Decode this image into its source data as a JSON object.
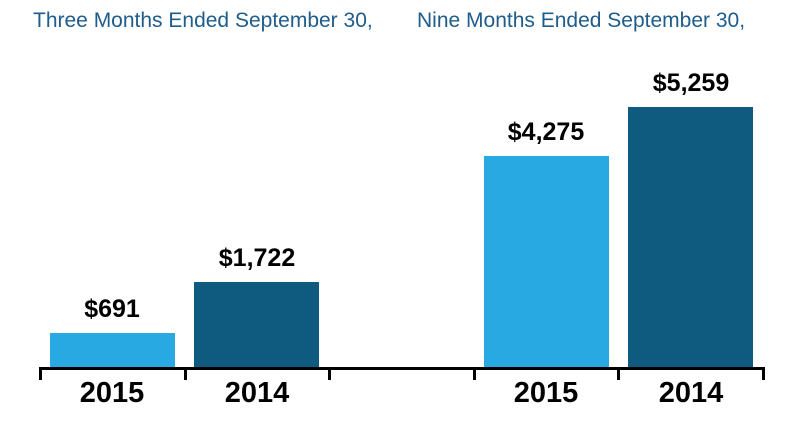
{
  "chart_data": {
    "type": "bar",
    "grid": false,
    "legend": "none",
    "background": "#FFFFFF",
    "ylim": [
      0,
      5259
    ],
    "xlabel": "",
    "ylabel": "",
    "groups": [
      {
        "title": "Three Months Ended September 30,",
        "categories": [
          "2015",
          "2014"
        ],
        "values": [
          691,
          1722
        ],
        "labels": [
          "$691",
          "$1,722"
        ]
      },
      {
        "title": "Nine Months Ended September 30,",
        "categories": [
          "2015",
          "2014"
        ],
        "values": [
          4275,
          5259
        ],
        "labels": [
          "$4,275",
          "$5,259"
        ]
      }
    ],
    "colors": {
      "2015": "#29A9E1",
      "2014": "#0F5B80"
    },
    "title_color": "#1E5C8C",
    "label_color": "#000000",
    "axis_color": "#000000"
  }
}
